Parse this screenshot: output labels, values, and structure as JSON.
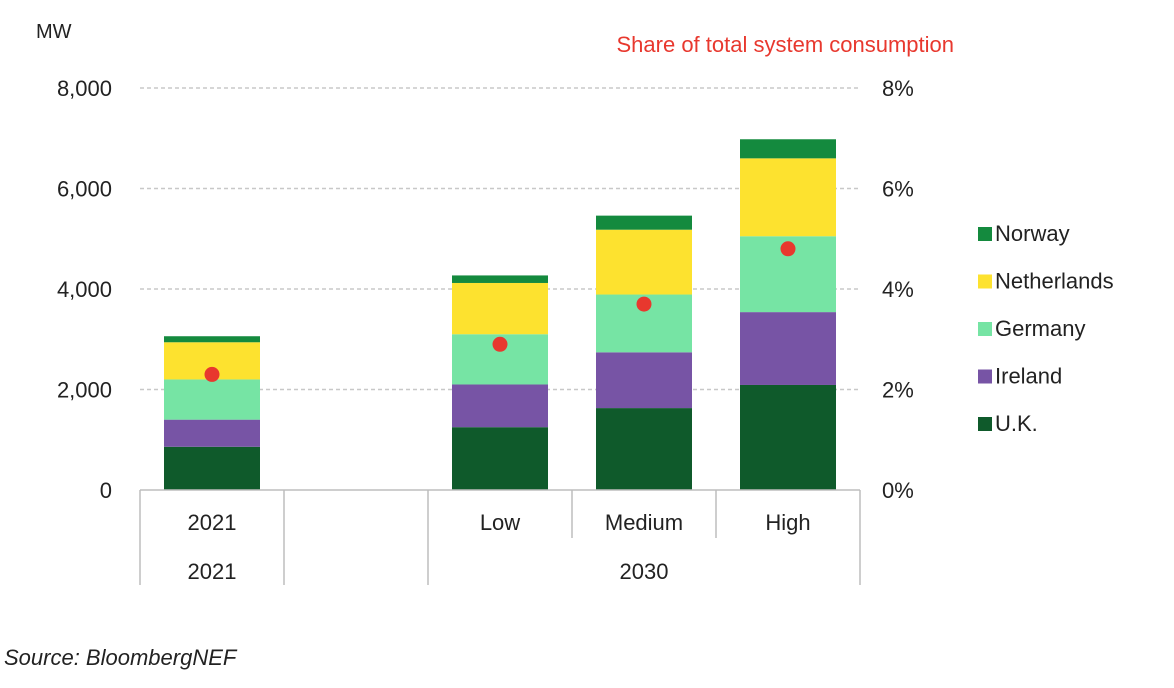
{
  "chart_data": {
    "type": "bar",
    "stacked": true,
    "ylabel": "MW",
    "right_axis_title": "Share of total system consumption",
    "ylim": [
      0,
      8000
    ],
    "yticks": [
      "0",
      "2,000",
      "4,000",
      "6,000",
      "8,000"
    ],
    "y2lim": [
      0,
      8
    ],
    "y2ticks": [
      "0%",
      "2%",
      "4%",
      "6%",
      "8%"
    ],
    "grid": true,
    "legend_position": "right",
    "categories": [
      "2021",
      "",
      "Low",
      "Medium",
      "High"
    ],
    "group_labels": [
      {
        "label": "2021",
        "span": [
          0,
          0
        ]
      },
      {
        "label": "2030",
        "span": [
          2,
          4
        ]
      }
    ],
    "series": [
      {
        "name": "U.K.",
        "color": "#0f5a2b",
        "values": [
          860,
          null,
          1250,
          1630,
          2090
        ]
      },
      {
        "name": "Ireland",
        "color": "#7754a5",
        "values": [
          540,
          null,
          850,
          1110,
          1450
        ]
      },
      {
        "name": "Germany",
        "color": "#76e4a4",
        "values": [
          800,
          null,
          1000,
          1150,
          1510
        ]
      },
      {
        "name": "Netherlands",
        "color": "#fde22f",
        "values": [
          740,
          null,
          1020,
          1290,
          1550
        ]
      },
      {
        "name": "Norway",
        "color": "#148a3e",
        "values": [
          120,
          null,
          150,
          280,
          380
        ]
      }
    ],
    "share_series": {
      "name": "Share of total system consumption",
      "color": "#e8382e",
      "unit": "%",
      "values": [
        2.3,
        null,
        2.9,
        3.7,
        4.8
      ]
    },
    "legend_order": [
      "Norway",
      "Netherlands",
      "Germany",
      "Ireland",
      "U.K."
    ]
  },
  "source": "Source: BloombergNEF"
}
